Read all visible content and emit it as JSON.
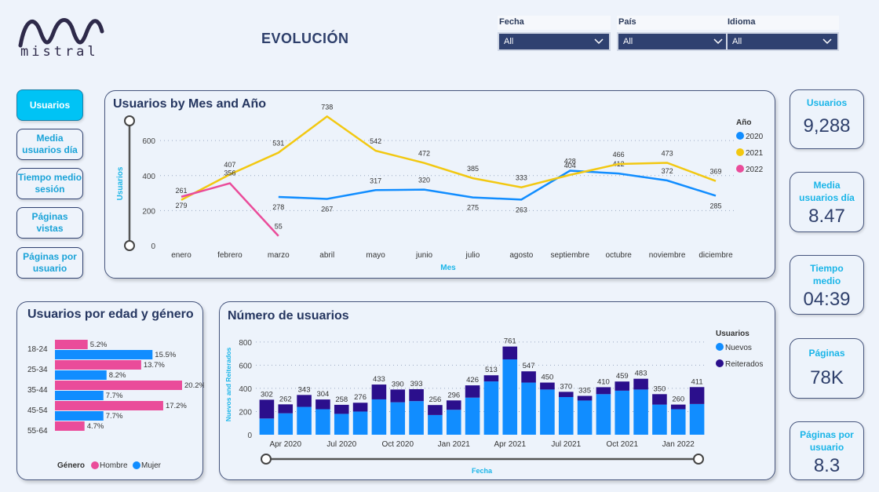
{
  "header": {
    "brand": "mistral",
    "title": "EVOLUCIÓN"
  },
  "filters": [
    {
      "label": "Fecha",
      "value": "All"
    },
    {
      "label": "País",
      "value": "All"
    },
    {
      "label": "Idioma",
      "value": "All"
    }
  ],
  "nav": [
    {
      "label": "Usuarios",
      "active": true
    },
    {
      "label": "Media usuarios día",
      "active": false
    },
    {
      "label": "Tiempo medio sesión",
      "active": false
    },
    {
      "label": "Páginas vistas",
      "active": false
    },
    {
      "label": "Páginas por usuario",
      "active": false
    }
  ],
  "kpis": [
    {
      "label": "Usuarios",
      "value": "9,288"
    },
    {
      "label": "Media usuarios día",
      "value": "8.47"
    },
    {
      "label": "Tiempo medio",
      "value": "04:39"
    },
    {
      "label": "Páginas",
      "value": "78K"
    },
    {
      "label": "Páginas por usuario",
      "value": "8.3"
    }
  ],
  "colors": {
    "c2020": "#118dff",
    "c2021": "#f2c811",
    "c2022": "#ea4c9a",
    "nuevos": "#118dff",
    "reiterados": "#2b0f8c",
    "hombre": "#ea4c9a",
    "mujer": "#118dff",
    "accent": "#1ab5e8"
  },
  "chart_data": [
    {
      "type": "line",
      "title": "Usuarios by Mes and Año",
      "xlabel": "Mes",
      "ylabel": "Usuarios",
      "legend_title": "Año",
      "legend_position": "right",
      "ylim": [
        0,
        780
      ],
      "yticks": [
        0,
        200,
        400,
        600
      ],
      "grid": true,
      "categories": [
        "enero",
        "febrero",
        "marzo",
        "abril",
        "mayo",
        "junio",
        "julio",
        "agosto",
        "septiembre",
        "octubre",
        "noviembre",
        "diciembre"
      ],
      "series": [
        {
          "name": "2020",
          "values": [
            null,
            null,
            278,
            267,
            317,
            320,
            275,
            263,
            428,
            412,
            372,
            285
          ]
        },
        {
          "name": "2021",
          "values": [
            261,
            407,
            531,
            738,
            542,
            472,
            385,
            333,
            404,
            466,
            473,
            369
          ]
        },
        {
          "name": "2022",
          "values": [
            279,
            356,
            55,
            null,
            null,
            null,
            null,
            null,
            null,
            null,
            null,
            null
          ]
        }
      ]
    },
    {
      "type": "bar",
      "orientation": "horizontal",
      "title": "Usuarios por edad y género",
      "legend_title": "Género",
      "legend_position": "bottom",
      "categories": [
        "18-24",
        "25-34",
        "35-44",
        "45-54",
        "55-64"
      ],
      "series": [
        {
          "name": "Hombre",
          "values": [
            5.2,
            13.7,
            20.2,
            17.2,
            4.7
          ],
          "labels": [
            "5.2%",
            "13.7%",
            "20.2%",
            "17.2%",
            "4.7%"
          ]
        },
        {
          "name": "Mujer",
          "values": [
            15.5,
            8.2,
            7.7,
            7.7,
            null
          ],
          "labels": [
            "15.5%",
            "8.2%",
            "7.7%",
            "7.7%",
            ""
          ]
        }
      ]
    },
    {
      "type": "bar",
      "stacked": true,
      "title": "Número de usuarios",
      "xlabel": "Fecha",
      "ylabel": "Nuevos and Reiterados",
      "legend_title": "Usuarios",
      "legend_position": "right",
      "ylim": [
        0,
        860
      ],
      "yticks": [
        0,
        200,
        400,
        600,
        800
      ],
      "xtick_labels": [
        "Apr 2020",
        "Jul 2020",
        "Oct 2020",
        "Jan 2021",
        "Apr 2021",
        "Jul 2021",
        "Oct 2021",
        "Jan 2022"
      ],
      "xtick_index": [
        1,
        4,
        7,
        10,
        13,
        16,
        19,
        22
      ],
      "totals": [
        302,
        262,
        343,
        304,
        258,
        276,
        433,
        390,
        393,
        256,
        296,
        426,
        513,
        761,
        547,
        450,
        370,
        335,
        410,
        459,
        483,
        350,
        260,
        411
      ],
      "series": [
        {
          "name": "Nuevos",
          "values": [
            140,
            185,
            240,
            220,
            180,
            200,
            305,
            280,
            290,
            170,
            215,
            320,
            460,
            650,
            450,
            390,
            325,
            295,
            350,
            380,
            390,
            260,
            220,
            265
          ]
        },
        {
          "name": "Reiterados",
          "values": [
            162,
            77,
            103,
            84,
            78,
            76,
            128,
            110,
            103,
            86,
            81,
            106,
            53,
            111,
            97,
            60,
            45,
            40,
            60,
            79,
            93,
            90,
            40,
            146
          ]
        }
      ]
    }
  ]
}
